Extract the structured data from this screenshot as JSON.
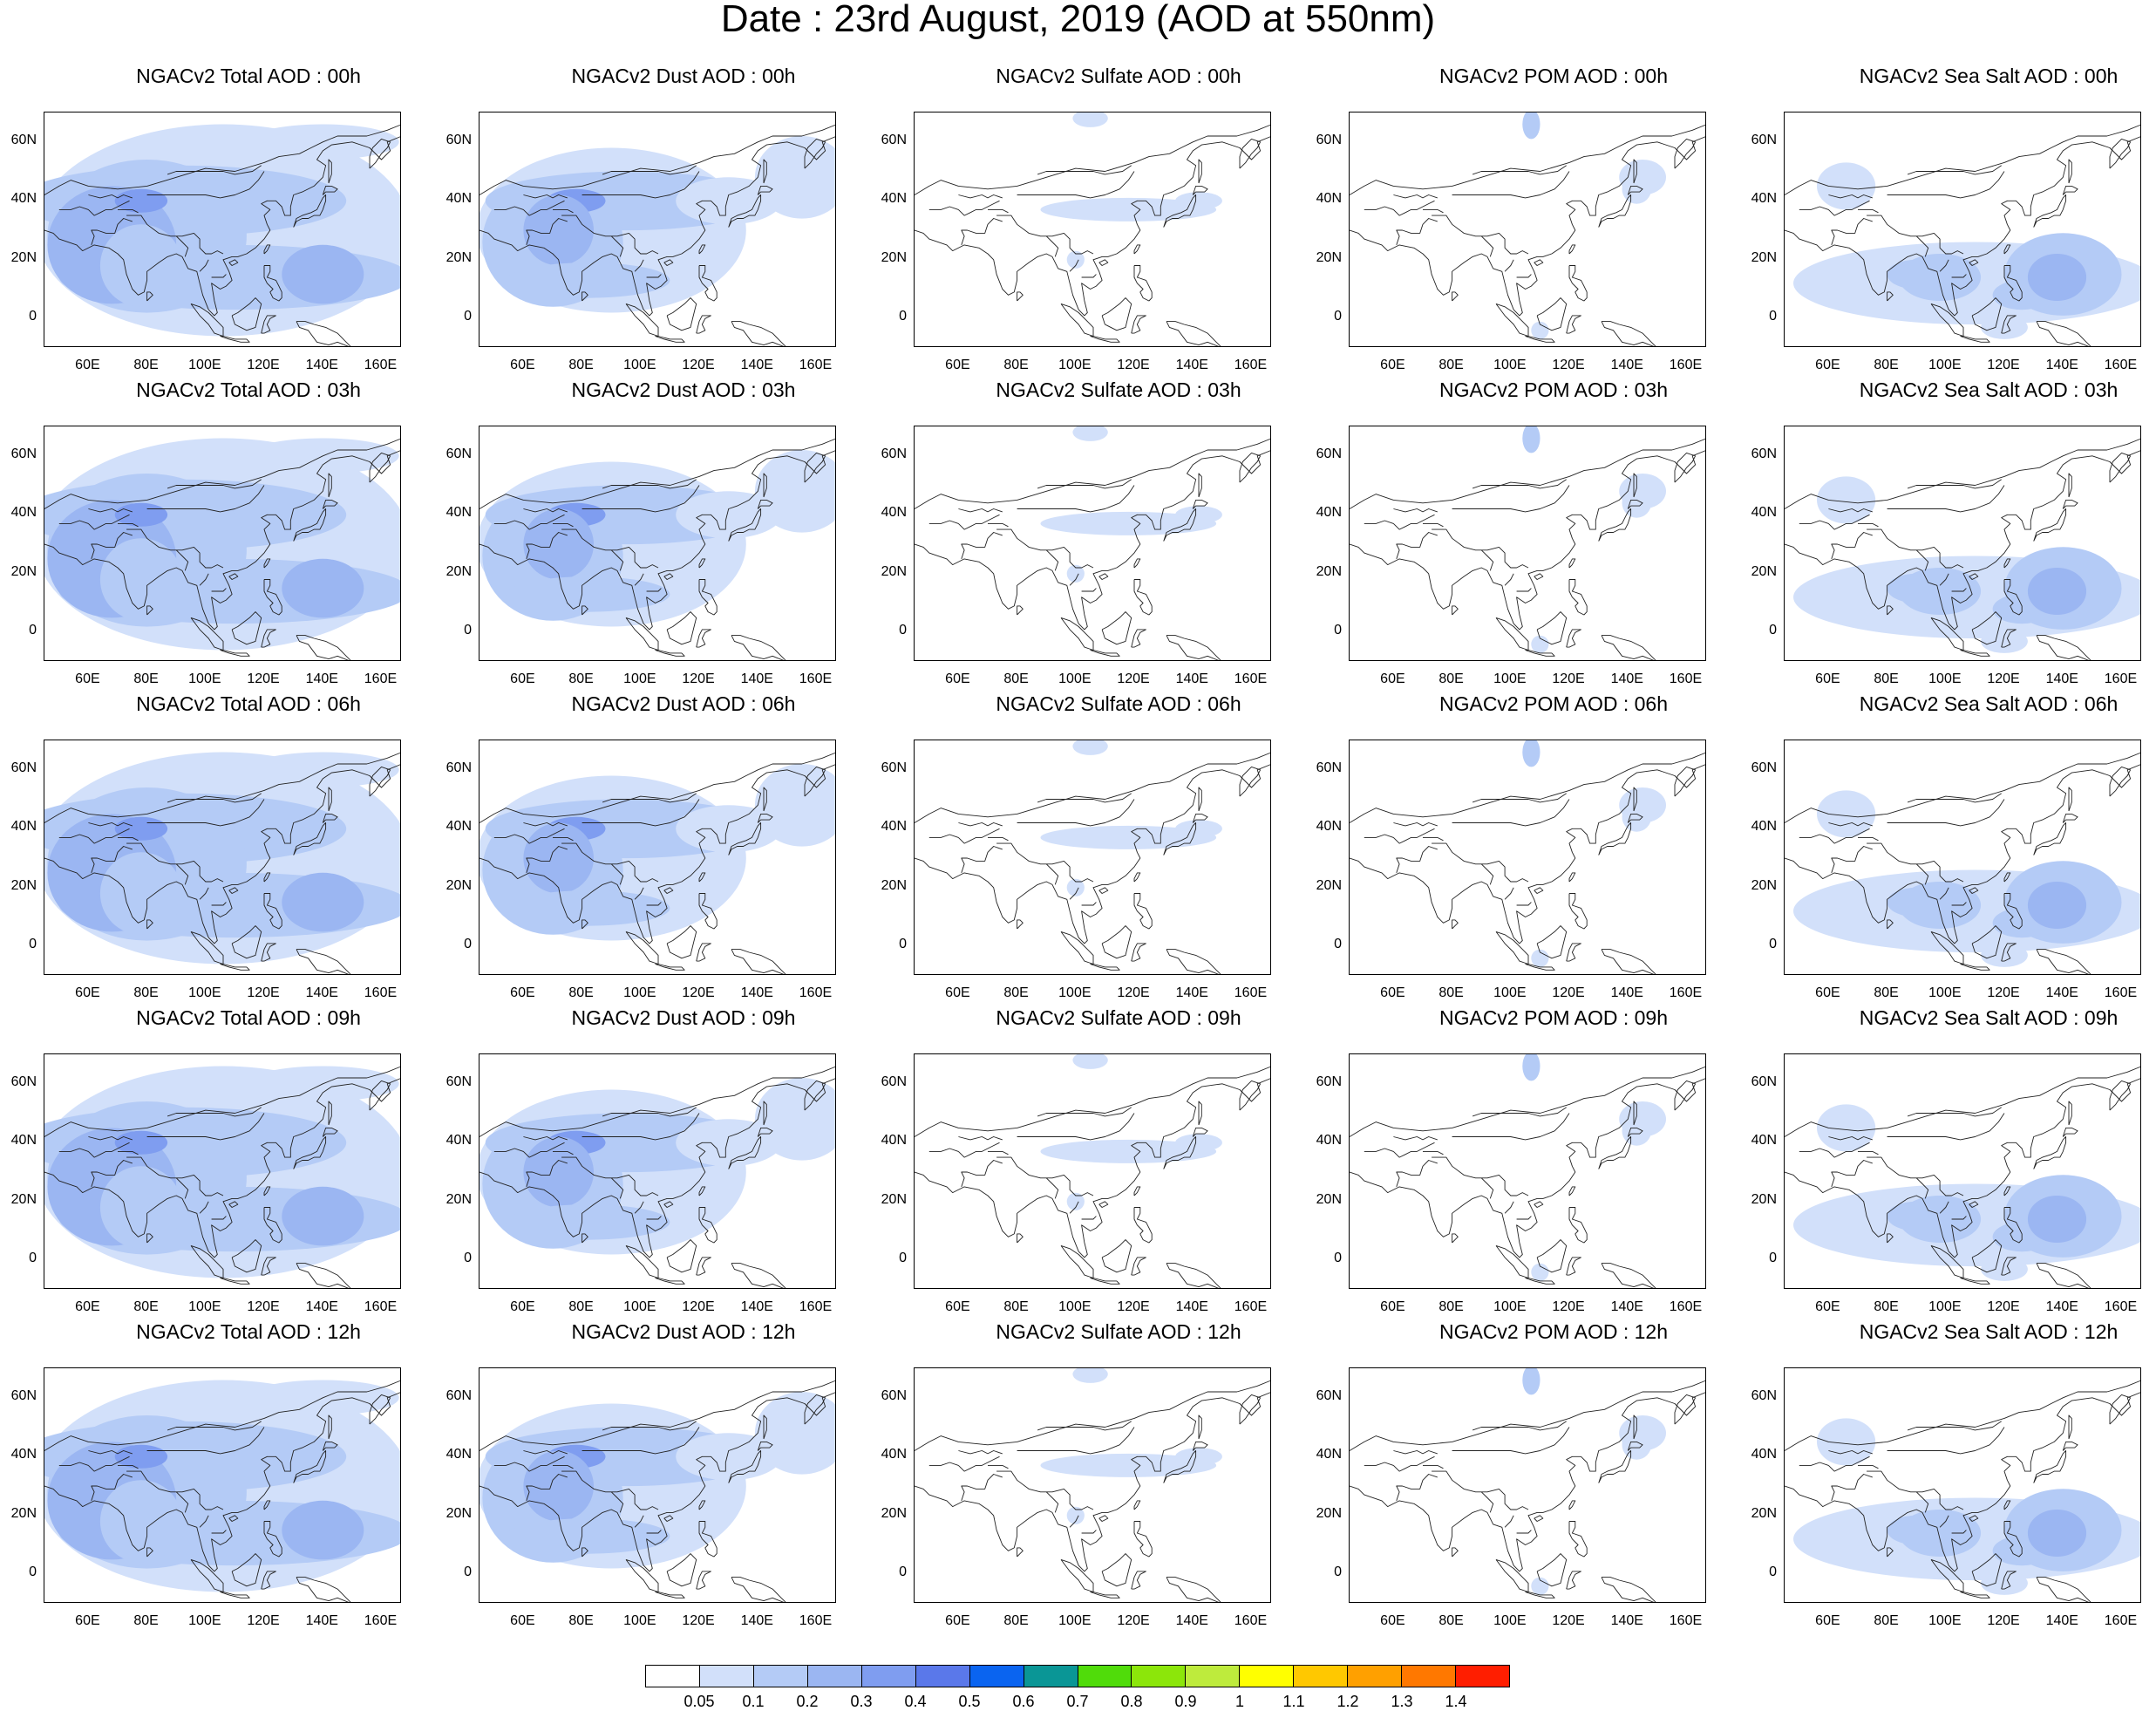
{
  "title": "Date : 23rd August, 2019 (AOD at 550nm)",
  "x_ticks": [
    "60E",
    "80E",
    "100E",
    "120E",
    "140E",
    "160E"
  ],
  "y_ticks": [
    "60N",
    "40N",
    "20N",
    "0"
  ],
  "panels": [
    {
      "title": "NGACv2 Total AOD : 00h",
      "species": "total"
    },
    {
      "title": "NGACv2 Dust AOD : 00h",
      "species": "dust"
    },
    {
      "title": "NGACv2 Sulfate AOD : 00h",
      "species": "sulfate"
    },
    {
      "title": "NGACv2 POM AOD : 00h",
      "species": "pom"
    },
    {
      "title": "NGACv2 Sea Salt AOD : 00h",
      "species": "seasalt"
    },
    {
      "title": "NGACv2 Total AOD : 03h",
      "species": "total"
    },
    {
      "title": "NGACv2 Dust AOD : 03h",
      "species": "dust"
    },
    {
      "title": "NGACv2 Sulfate AOD : 03h",
      "species": "sulfate"
    },
    {
      "title": "NGACv2 POM AOD : 03h",
      "species": "pom"
    },
    {
      "title": "NGACv2 Sea Salt AOD : 03h",
      "species": "seasalt"
    },
    {
      "title": "NGACv2 Total AOD : 06h",
      "species": "total"
    },
    {
      "title": "NGACv2 Dust AOD : 06h",
      "species": "dust"
    },
    {
      "title": "NGACv2 Sulfate AOD : 06h",
      "species": "sulfate"
    },
    {
      "title": "NGACv2 POM AOD : 06h",
      "species": "pom"
    },
    {
      "title": "NGACv2 Sea Salt AOD : 06h",
      "species": "seasalt"
    },
    {
      "title": "NGACv2 Total AOD : 09h",
      "species": "total"
    },
    {
      "title": "NGACv2 Dust AOD : 09h",
      "species": "dust"
    },
    {
      "title": "NGACv2 Sulfate AOD : 09h",
      "species": "sulfate"
    },
    {
      "title": "NGACv2 POM AOD : 09h",
      "species": "pom"
    },
    {
      "title": "NGACv2 Sea Salt  AOD : 09h",
      "species": "seasalt"
    },
    {
      "title": "NGACv2 Total AOD  : 12h",
      "species": "total"
    },
    {
      "title": "NGACv2 Dust AOD : 12h",
      "species": "dust"
    },
    {
      "title": "NGACv2 Sulfate AOD : 12h",
      "species": "sulfate"
    },
    {
      "title": "NGACv2 POM  AOD : 12h",
      "species": "pom"
    },
    {
      "title": "NGACv2 Sea Salt  AOD : 12h",
      "species": "seasalt"
    }
  ],
  "colorbar": {
    "colors": [
      "#ffffff",
      "#d2e0fa",
      "#b4cbf6",
      "#9bb6f2",
      "#7f9df0",
      "#5a78ea",
      "#0a64f0",
      "#0a9696",
      "#50dc0a",
      "#8ce60a",
      "#beeb3c",
      "#ffff00",
      "#ffc800",
      "#ffa000",
      "#ff7800",
      "#ff1e00"
    ],
    "labels": [
      "0.05",
      "0.1",
      "0.2",
      "0.3",
      "0.4",
      "0.5",
      "0.6",
      "0.7",
      "0.8",
      "0.9",
      "1",
      "1.1",
      "1.2",
      "1.3",
      "1.4"
    ]
  }
}
